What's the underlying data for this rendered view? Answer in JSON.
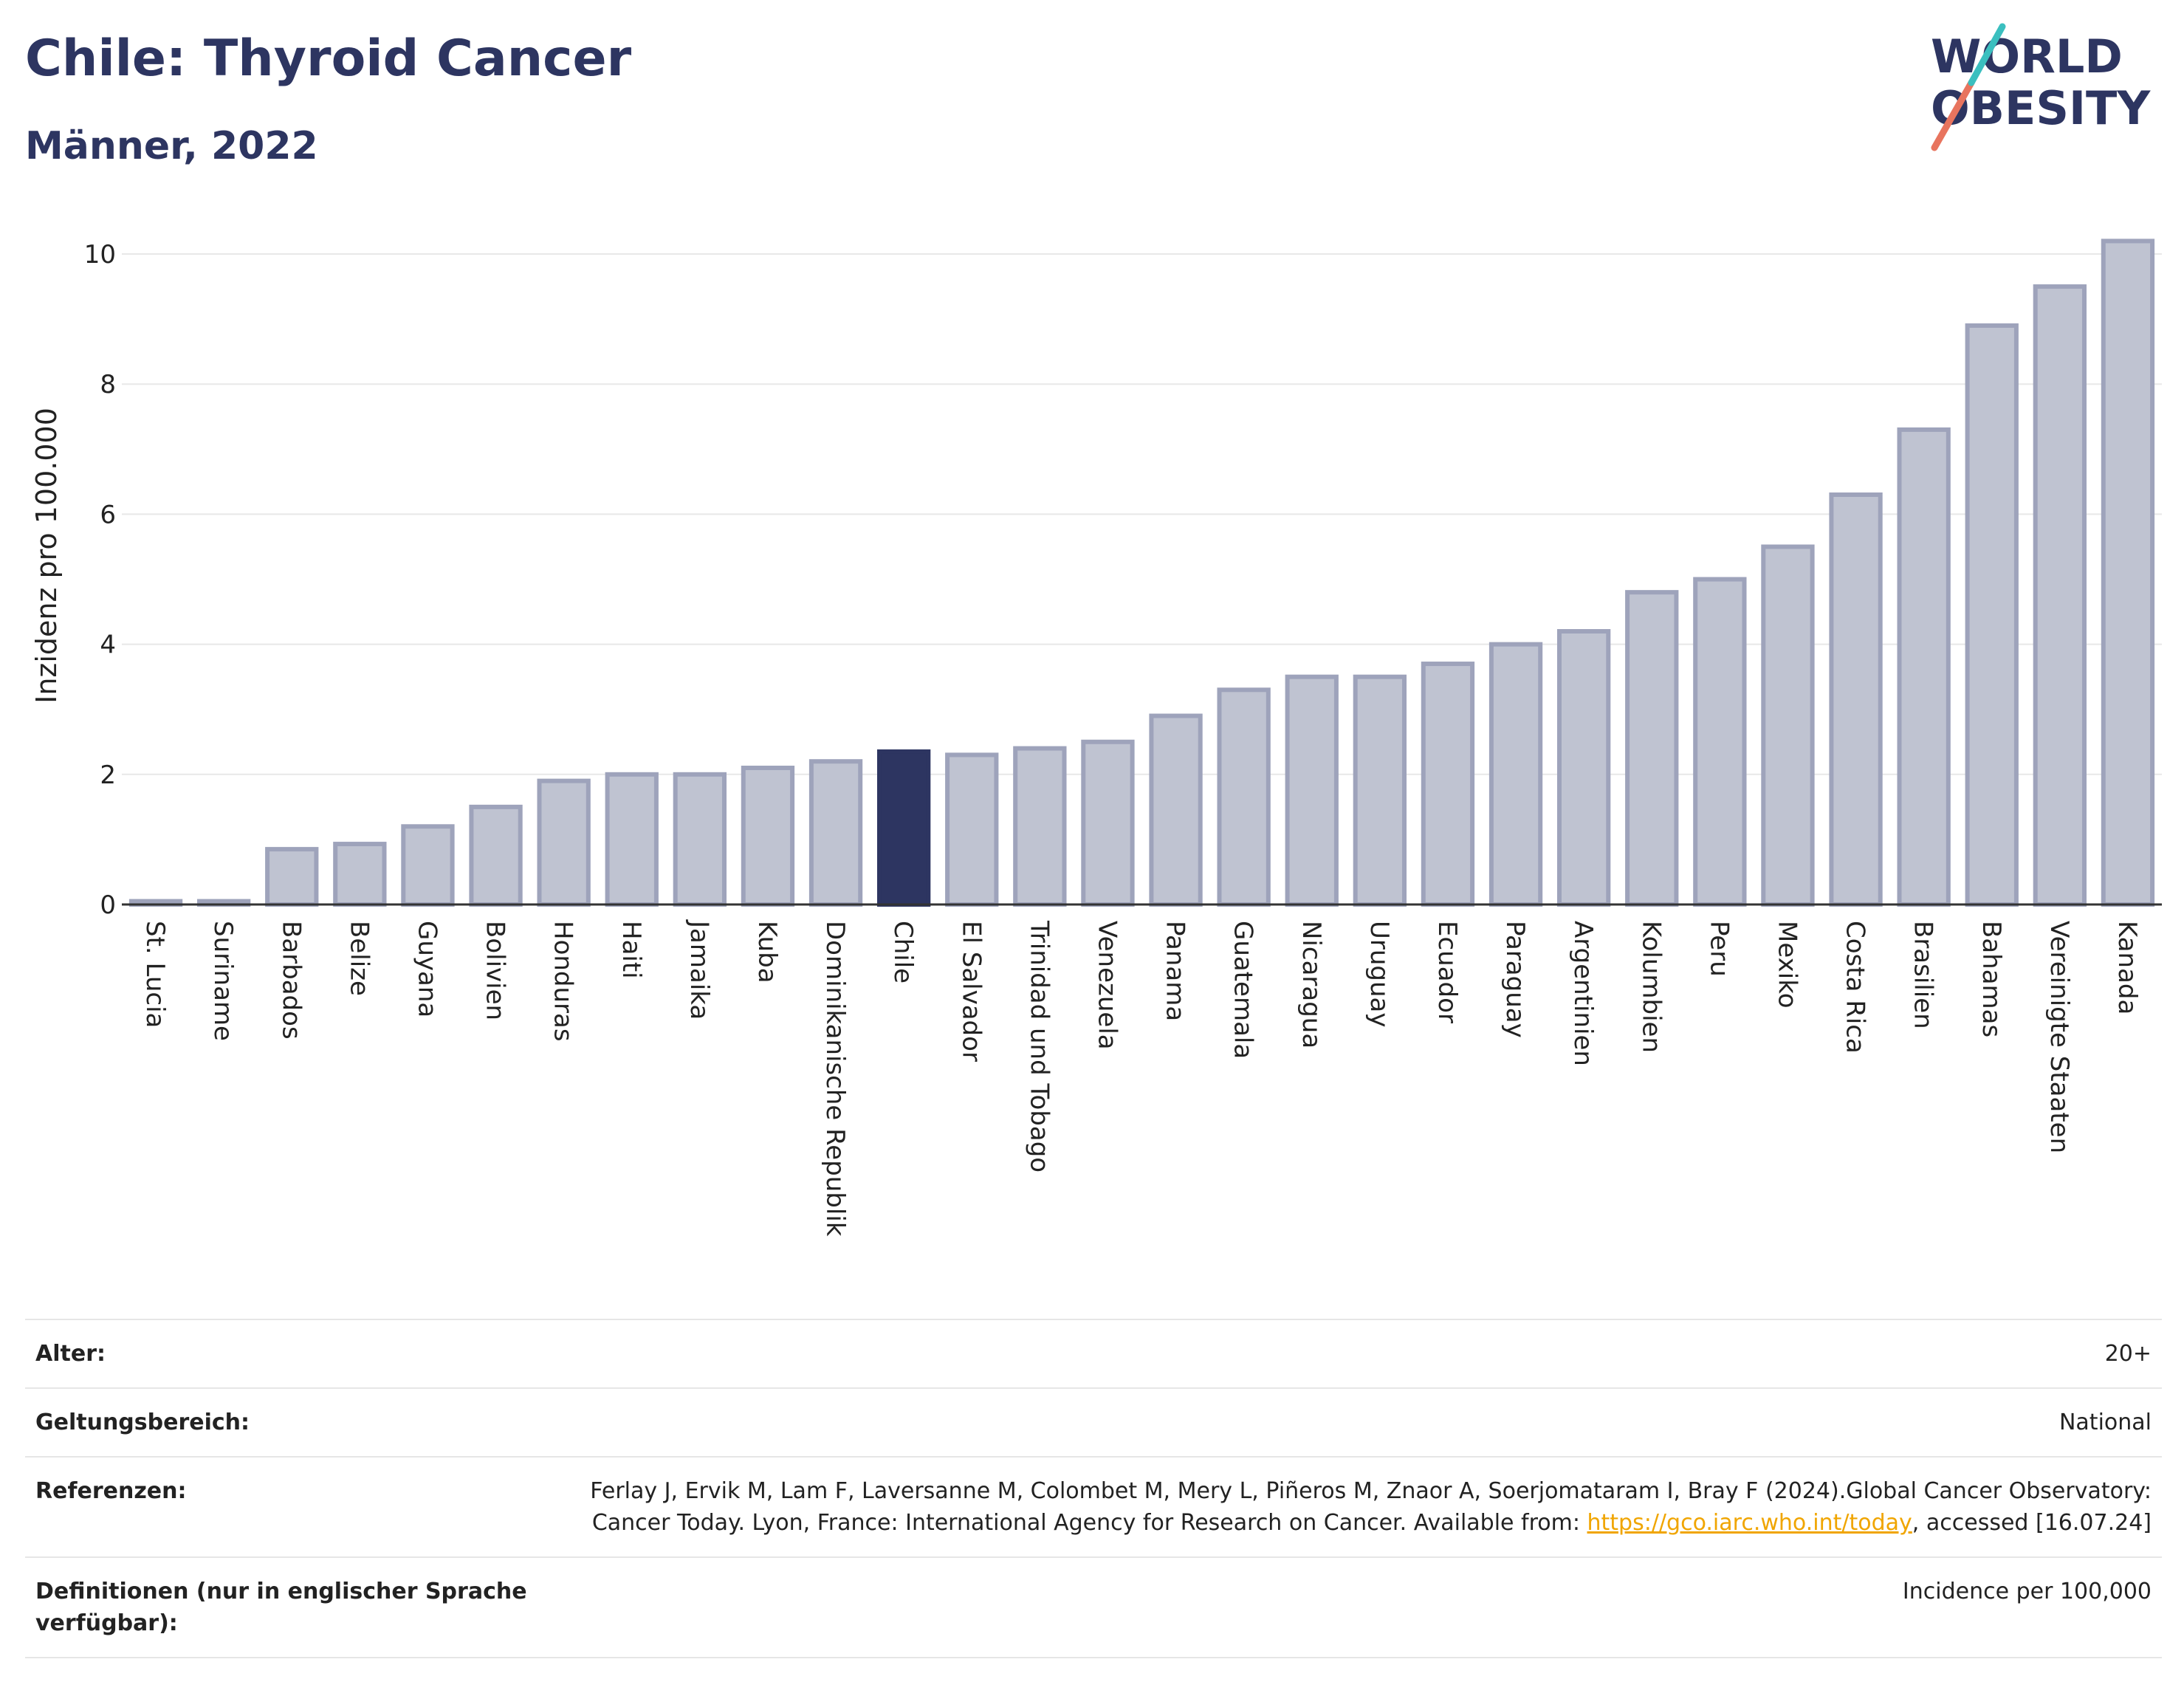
{
  "header": {
    "title": "Chile: Thyroid Cancer",
    "subtitle": "Männer, 2022"
  },
  "logo": {
    "line1": "WORLD",
    "line2": "OBESITY",
    "accent_color": "#e8745e",
    "accent2_color": "#3bbfbf"
  },
  "colors": {
    "highlight": "#2d3561",
    "bar": "#bfc3d1",
    "bar_border": "#9ea3bb"
  },
  "chart_data": {
    "type": "bar",
    "ylabel": "Inzidenz pro 100.000",
    "ylim": [
      0,
      10.5
    ],
    "yticks": [
      0,
      2,
      4,
      6,
      8,
      10
    ],
    "highlight": "Chile",
    "categories": [
      "St. Lucia",
      "Suriname",
      "Barbados",
      "Belize",
      "Guyana",
      "Bolivien",
      "Honduras",
      "Haiti",
      "Jamaika",
      "Kuba",
      "Dominikanische Republik",
      "Chile",
      "El Salvador",
      "Trinidad und Tobago",
      "Venezuela",
      "Panama",
      "Guatemala",
      "Nicaragua",
      "Uruguay",
      "Ecuador",
      "Paraguay",
      "Argentinien",
      "Kolumbien",
      "Peru",
      "Mexiko",
      "Costa Rica",
      "Brasilien",
      "Bahamas",
      "Vereinigte Staaten",
      "Kanada"
    ],
    "values": [
      0.05,
      0.05,
      0.85,
      0.93,
      1.2,
      1.5,
      1.9,
      2.0,
      2.0,
      2.1,
      2.2,
      2.35,
      2.3,
      2.4,
      2.5,
      2.9,
      3.3,
      3.5,
      3.5,
      3.7,
      4.0,
      4.2,
      4.8,
      5.0,
      5.5,
      6.3,
      7.3,
      8.9,
      9.5,
      10.2
    ]
  },
  "info": {
    "rows": [
      {
        "key": "Alter:",
        "value": "20+"
      },
      {
        "key": "Geltungsbereich:",
        "value": "National"
      },
      {
        "key": "Referenzen:",
        "value_pre": "Ferlay J, Ervik M, Lam F, Laversanne M, Colombet M, Mery L, Piñeros M, Znaor A, Soerjomataram I, Bray F (2024).Global Cancer Observatory: Cancer Today. Lyon, France: International Agency for Research on Cancer. Available from: ",
        "link": "https://gco.iarc.who.int/today",
        "value_post": ", accessed [16.07.24]"
      },
      {
        "key": "Definitionen (nur in englischer Sprache verfügbar):",
        "value": "Incidence per 100,000"
      }
    ]
  }
}
